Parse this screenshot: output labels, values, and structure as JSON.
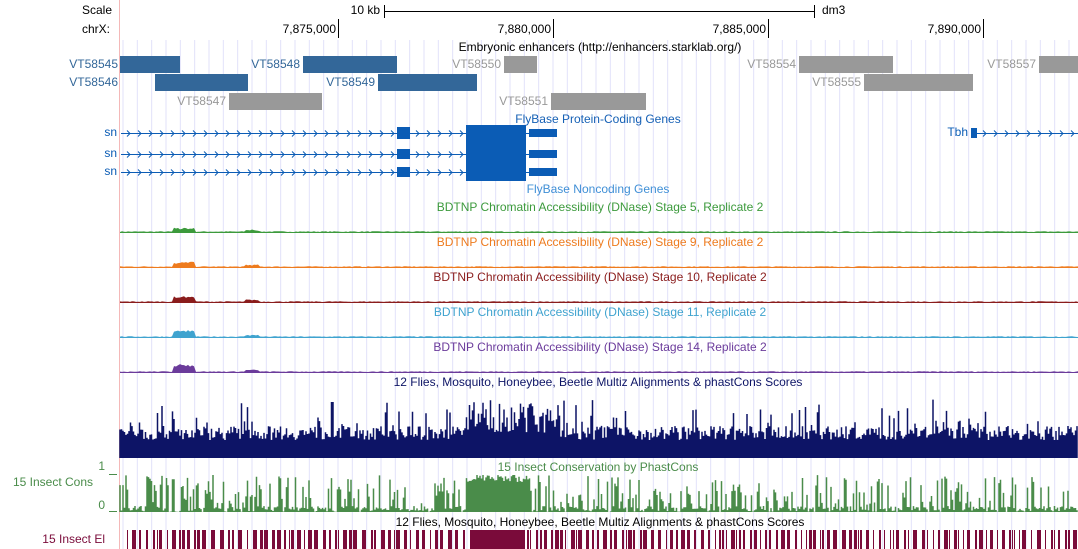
{
  "ruler": {
    "scale_label": "Scale",
    "chrom_label": "chrX:",
    "span_label": "10 kb",
    "assembly": "dm3",
    "ticks": [
      {
        "value": 7875000,
        "label": "7,875,000"
      },
      {
        "value": 7880000,
        "label": "7,880,000"
      },
      {
        "value": 7885000,
        "label": "7,885,000"
      },
      {
        "value": 7890000,
        "label": "7,890,000"
      }
    ]
  },
  "enhancers": {
    "title": "Embryonic enhancers (http://enhancers.starklab.org/)",
    "items": [
      "VT58545",
      "VT58548",
      "VT58550",
      "VT58554",
      "VT58557",
      "VT58546",
      "VT58549",
      "VT58555",
      "VT58547",
      "VT58551"
    ]
  },
  "genes": {
    "protein_coding_title": "FlyBase Protein-Coding Genes",
    "noncoding_title": "FlyBase Noncoding Genes",
    "rows": [
      "sn",
      "sn",
      "sn"
    ],
    "other_gene": "Tbh"
  },
  "dnase_tracks": [
    {
      "title": "BDTNP Chromatin Accessibility (DNase) Stage 5, Replicate 2",
      "color": "#3c9a3c"
    },
    {
      "title": "BDTNP Chromatin Accessibility (DNase) Stage 9, Replicate 2",
      "color": "#ee7b1e"
    },
    {
      "title": "BDTNP Chromatin Accessibility (DNase) Stage 10, Replicate 2",
      "color": "#8a1c1c"
    },
    {
      "title": "BDTNP Chromatin Accessibility (DNase) Stage 11, Replicate 2",
      "color": "#3fa3cf"
    },
    {
      "title": "BDTNP Chromatin Accessibility (DNase) Stage 14, Replicate 2",
      "color": "#6b3b9b"
    }
  ],
  "multiz": {
    "title": "12 Flies, Mosquito, Honeybee, Beetle Multiz Alignments & phastCons Scores",
    "color": "#0d1466"
  },
  "phastcons": {
    "title": "15 Insect Conservation by PhastCons",
    "side_label": "15 Insect Cons",
    "max_label": "1",
    "min_label": "0",
    "color": "#4a8c4a"
  },
  "elements": {
    "title": "12 Flies, Mosquito, Honeybee, Beetle Multiz Alignments & phastCons Scores",
    "side_label": "15 Insect El",
    "color": "#7a0b3a"
  }
}
